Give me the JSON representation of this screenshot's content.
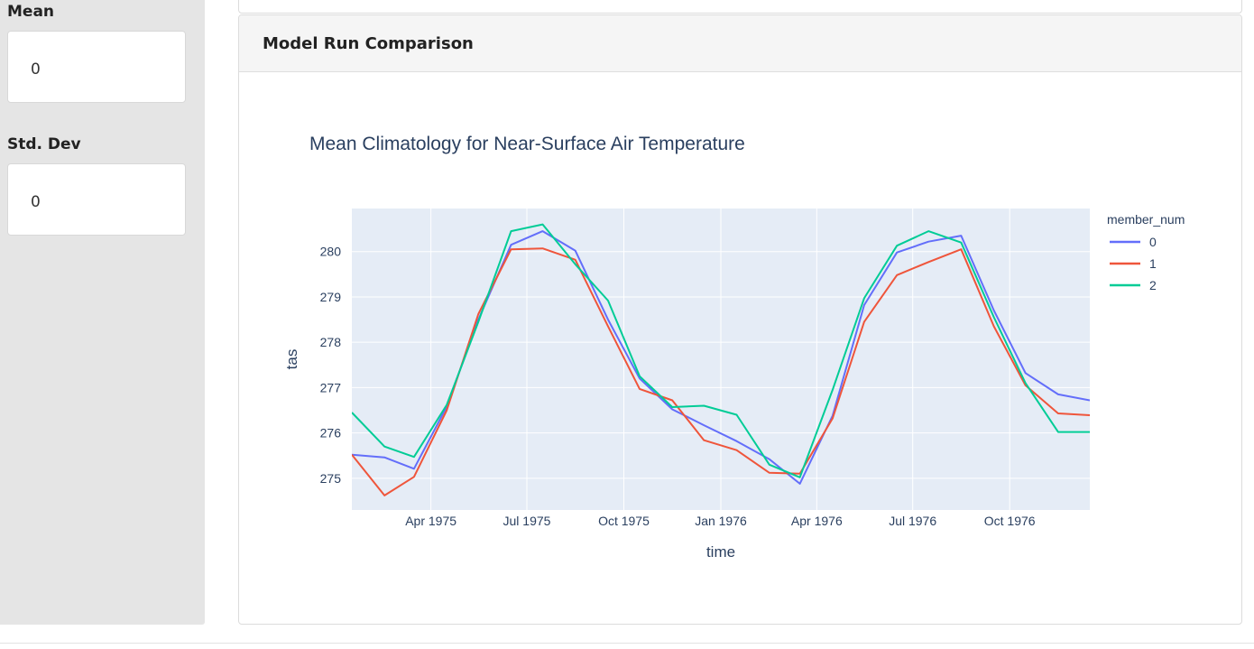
{
  "sidebar": {
    "stats": [
      {
        "label": "Mean",
        "value": "0"
      },
      {
        "label": "Std. Dev",
        "value": "0"
      }
    ]
  },
  "card": {
    "title": "Model Run Comparison"
  },
  "colors": {
    "plot_bg": "#e5ecf6",
    "series": [
      "#636efa",
      "#ef553b",
      "#00cc96"
    ],
    "text": "#2a3f5f"
  },
  "chart_data": {
    "type": "line",
    "title": "Mean Climatology for Near-Surface Air Temperature",
    "xlabel": "time",
    "ylabel": "tas",
    "x": [
      "1975-01",
      "1975-02",
      "1975-03",
      "1975-04",
      "1975-05",
      "1975-06",
      "1975-07",
      "1975-08",
      "1975-09",
      "1975-10",
      "1975-11",
      "1975-12",
      "1976-01",
      "1976-02",
      "1976-03",
      "1976-04",
      "1976-05",
      "1976-06",
      "1976-07",
      "1976-08",
      "1976-09",
      "1976-10",
      "1976-11",
      "1976-12"
    ],
    "x_ticks": [
      "Apr 1975",
      "Jul 1975",
      "Oct 1975",
      "Jan 1976",
      "Apr 1976",
      "Jul 1976",
      "Oct 1976"
    ],
    "x_tick_dates": [
      "1975-04-01",
      "1975-07-01",
      "1975-10-01",
      "1976-01-01",
      "1976-04-01",
      "1976-07-01",
      "1976-10-01"
    ],
    "xlim": [
      "1975-01-16",
      "1976-12-16"
    ],
    "y_ticks": [
      275,
      276,
      277,
      278,
      279,
      280
    ],
    "ylim": [
      274.3,
      280.95
    ],
    "grid": true,
    "legend": {
      "title": "member_num",
      "placement": "right"
    },
    "series": [
      {
        "name": "0",
        "values": [
          275.52,
          275.46,
          275.21,
          276.58,
          278.5,
          280.15,
          280.45,
          280.02,
          278.5,
          277.2,
          276.52,
          276.17,
          275.82,
          275.42,
          274.88,
          276.38,
          278.82,
          279.98,
          280.22,
          280.35,
          278.7,
          277.32,
          276.85,
          276.72
        ]
      },
      {
        "name": "1",
        "values": [
          275.52,
          274.62,
          275.03,
          276.5,
          278.62,
          280.05,
          280.07,
          279.82,
          278.35,
          276.97,
          276.72,
          275.84,
          275.62,
          275.12,
          275.1,
          276.32,
          278.45,
          279.48,
          279.77,
          280.05,
          278.35,
          277.05,
          276.43,
          276.39
        ]
      },
      {
        "name": "2",
        "values": [
          276.45,
          275.7,
          275.47,
          276.62,
          278.45,
          280.45,
          280.6,
          279.72,
          278.92,
          277.25,
          276.57,
          276.6,
          276.4,
          275.3,
          275.02,
          276.95,
          278.97,
          280.13,
          280.45,
          280.2,
          278.55,
          277.1,
          276.02,
          276.02
        ]
      }
    ]
  }
}
